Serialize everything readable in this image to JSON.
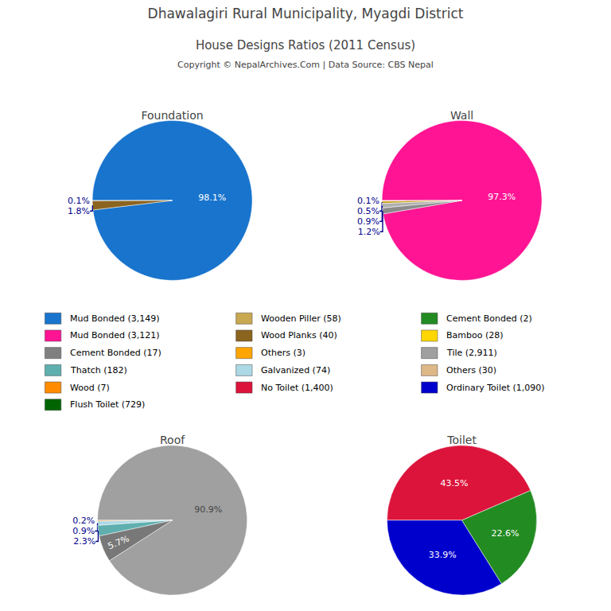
{
  "title": "Dhawalagiri Rural Municipality, Myagdi District",
  "subtitle": "House Designs Ratios (2011 Census)",
  "annotations": [
    "Copyright © NepalArchives.Com | Data Source: CBS Nepal"
  ],
  "series": [
    {
      "name": "Mud Bonded (3,149)",
      "color": "#1874CD"
    },
    {
      "name": "Wooden Piller (58)",
      "color": "#C8A850"
    },
    {
      "name": "Cement Bonded (2)",
      "color": "#228B22"
    },
    {
      "name": "Mud Bonded (3,121)",
      "color": "#FF1493"
    },
    {
      "name": "Wood Planks (40)",
      "color": "#8B6420"
    },
    {
      "name": "Bamboo (28)",
      "color": "#FFD700"
    },
    {
      "name": "Cement Bonded (17)",
      "color": "#808080"
    },
    {
      "name": "Others (3)",
      "color": "#FFA500"
    },
    {
      "name": "Tile (2,911)",
      "color": "#A0A0A0"
    },
    {
      "name": "Thatch (182)",
      "color": "#5FAFAF"
    },
    {
      "name": "Galvanized (74)",
      "color": "#ADD8E6"
    },
    {
      "name": "Others (30)",
      "color": "#DEB887"
    },
    {
      "name": "Wood (7)",
      "color": "#FF8C00"
    },
    {
      "name": "No Toilet (1,400)",
      "color": "#DC143C"
    },
    {
      "name": "Ordinary Toilet (1,090)",
      "color": "#0000CD"
    },
    {
      "name": "Flush Toilet (729)",
      "color": "#006400"
    }
  ],
  "chart_data": [
    {
      "type": "pie",
      "title": "Foundation",
      "values": [
        98.1,
        0.1,
        1.8
      ],
      "colors": [
        "#1874CD",
        "#C8A850",
        "#8B6420"
      ],
      "data_labels": true,
      "value_labels": [
        "98.1%",
        "0.1%",
        "1.8%"
      ]
    },
    {
      "type": "pie",
      "title": "Wall",
      "values": [
        97.3,
        0.1,
        0.5,
        0.9,
        1.2
      ],
      "colors": [
        "#FF1493",
        "#FFD700",
        "#C8A020",
        "#B0B0B0",
        "#8B8B8B"
      ],
      "data_labels": true,
      "value_labels": [
        "97.3%",
        "0.1%",
        "0.5%",
        "0.9%",
        "1.2%"
      ]
    },
    {
      "type": "pie",
      "title": "Roof",
      "values": [
        90.9,
        0.2,
        0.9,
        2.3,
        5.7
      ],
      "colors": [
        "#A0A0A0",
        "#FF8C00",
        "#ADD8E6",
        "#5FAFAF",
        "#787878"
      ],
      "data_labels": true,
      "value_labels": [
        "90.9%",
        "0.2%",
        "0.9%",
        "2.3%",
        "5.7%"
      ]
    },
    {
      "type": "pie",
      "title": "Toilet",
      "values": [
        43.5,
        33.9,
        22.6
      ],
      "colors": [
        "#DC143C",
        "#0000CD",
        "#228B22"
      ],
      "data_labels": true,
      "value_labels": [
        "43.5%",
        "33.9%",
        "22.6%"
      ]
    }
  ]
}
